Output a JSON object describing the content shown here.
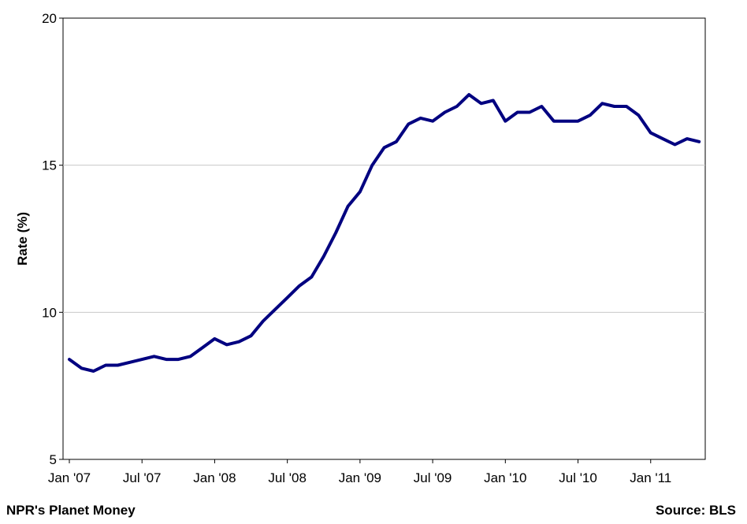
{
  "chart_data": {
    "type": "line",
    "title": "",
    "xlabel": "",
    "ylabel": "Rate (%)",
    "ylim": [
      5,
      20
    ],
    "yticks": [
      "5",
      "10",
      "15",
      "20"
    ],
    "xticks": [
      {
        "label": "Jan '07",
        "month": 0
      },
      {
        "label": "Jul '07",
        "month": 6
      },
      {
        "label": "Jan '08",
        "month": 12
      },
      {
        "label": "Jul '08",
        "month": 18
      },
      {
        "label": "Jan '09",
        "month": 24
      },
      {
        "label": "Jul '09",
        "month": 30
      },
      {
        "label": "Jan '10",
        "month": 36
      },
      {
        "label": "Jul '10",
        "month": 42
      },
      {
        "label": "Jan '11",
        "month": 48
      }
    ],
    "grid": true,
    "color": "#000080",
    "series": [
      {
        "name": "",
        "start": "2007-01",
        "values": [
          8.4,
          8.1,
          8.0,
          8.2,
          8.2,
          8.3,
          8.4,
          8.5,
          8.4,
          8.4,
          8.5,
          8.8,
          9.1,
          8.9,
          9.0,
          9.2,
          9.7,
          10.1,
          10.5,
          10.9,
          11.2,
          11.9,
          12.7,
          13.6,
          14.1,
          15.0,
          15.6,
          15.8,
          16.4,
          16.6,
          16.5,
          16.8,
          17.0,
          17.4,
          17.1,
          17.2,
          16.5,
          16.8,
          16.8,
          17.0,
          16.5,
          16.5,
          16.5,
          16.7,
          17.1,
          17.0,
          17.0,
          16.7,
          16.1,
          15.9,
          15.7,
          15.9,
          15.8
        ]
      }
    ]
  },
  "footer": {
    "credit": "NPR's Planet Money",
    "source": "Source: BLS"
  }
}
